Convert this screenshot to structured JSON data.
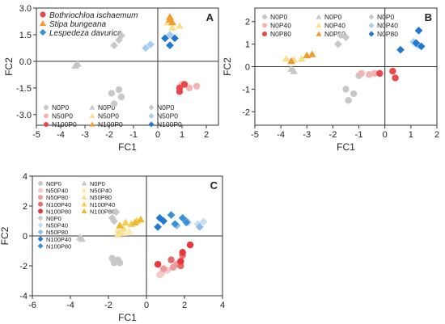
{
  "chart_data": [
    {
      "type": "scatter",
      "panel_label": "A",
      "xlabel": "FC1",
      "ylabel": "FC2",
      "xlim": [
        -5,
        2.5
      ],
      "ylim": [
        -3.6,
        3.0
      ],
      "xticks": [
        -5,
        -4,
        -3,
        -2,
        -1,
        0,
        1,
        2
      ],
      "yticks": [
        -3.0,
        -1.5,
        0.0,
        1.5,
        3.0
      ],
      "yticks_labels": [
        "-3.0",
        "-1.5",
        "0.0",
        "1.5",
        "3.0"
      ],
      "species_legend": [
        {
          "name": "Bothriochloa ischaemum",
          "shape": "circle",
          "color": "#e8474b"
        },
        {
          "name": "Stipa bungeana",
          "shape": "triangle",
          "color": "#f39a2c"
        },
        {
          "name": "Lespedeza davurica",
          "shape": "diamond",
          "color": "#3a8fd9"
        }
      ],
      "legend": [
        {
          "name": "N0P0",
          "shape": "circle",
          "color": "#c8c8c8"
        },
        {
          "name": "N50P0",
          "shape": "circle",
          "color": "#f4b4b4"
        },
        {
          "name": "N100P0",
          "shape": "circle",
          "color": "#e8474b"
        },
        {
          "name": "N0P0",
          "shape": "triangle",
          "color": "#c8c8c8"
        },
        {
          "name": "N50P0",
          "shape": "triangle",
          "color": "#f9de8c"
        },
        {
          "name": "N100P0",
          "shape": "triangle",
          "color": "#f39a2c"
        },
        {
          "name": "N0P0",
          "shape": "diamond",
          "color": "#c8c8c8"
        },
        {
          "name": "N50P0",
          "shape": "diamond",
          "color": "#a9cdf0"
        },
        {
          "name": "N100P0",
          "shape": "diamond",
          "color": "#1f78d1"
        }
      ],
      "series": [
        {
          "shape": "circle",
          "color": "#c8c8c8",
          "points": [
            [
              -1.6,
              -1.6
            ],
            [
              -1.9,
              -1.8
            ],
            [
              -1.5,
              -2.0
            ],
            [
              -1.8,
              -2.4
            ]
          ]
        },
        {
          "shape": "circle",
          "color": "#f4b4b4",
          "points": [
            [
              1.3,
              -1.5
            ],
            [
              1.6,
              -1.4
            ],
            [
              1.0,
              -1.3
            ]
          ]
        },
        {
          "shape": "circle",
          "color": "#e8474b",
          "points": [
            [
              0.9,
              -1.5
            ],
            [
              1.1,
              -1.3
            ],
            [
              0.9,
              -1.7
            ]
          ]
        },
        {
          "shape": "triangle",
          "color": "#c8c8c8",
          "points": [
            [
              -3.3,
              -0.15
            ],
            [
              -3.4,
              -0.25
            ]
          ]
        },
        {
          "shape": "triangle",
          "color": "#f9de8c",
          "points": [
            [
              0.9,
              2.0
            ],
            [
              0.4,
              2.2
            ],
            [
              0.6,
              1.9
            ]
          ]
        },
        {
          "shape": "triangle",
          "color": "#f39a2c",
          "points": [
            [
              0.5,
              2.5
            ],
            [
              0.6,
              2.2
            ],
            [
              0.5,
              2.35
            ]
          ]
        },
        {
          "shape": "diamond",
          "color": "#c8c8c8",
          "points": [
            [
              -1.8,
              0.9
            ],
            [
              -1.6,
              1.2
            ],
            [
              -1.5,
              1.45
            ]
          ]
        },
        {
          "shape": "diamond",
          "color": "#a9cdf0",
          "points": [
            [
              -0.5,
              0.75
            ],
            [
              -0.3,
              0.95
            ],
            [
              0.5,
              1.5
            ]
          ]
        },
        {
          "shape": "diamond",
          "color": "#1f78d1",
          "points": [
            [
              0.3,
              1.3
            ],
            [
              0.7,
              1.3
            ],
            [
              0.5,
              0.9
            ]
          ]
        }
      ]
    },
    {
      "type": "scatter",
      "panel_label": "B",
      "xlabel": "FC1",
      "ylabel": "FC2",
      "xlim": [
        -5,
        2
      ],
      "ylim": [
        -2.6,
        2.6
      ],
      "xticks": [
        -5,
        -4,
        -3,
        -2,
        -1,
        0,
        1,
        2
      ],
      "yticks": [
        -2,
        -1,
        0,
        1,
        2
      ],
      "legend": [
        {
          "name": "N0P0",
          "shape": "circle",
          "color": "#c8c8c8"
        },
        {
          "name": "N0P40",
          "shape": "circle",
          "color": "#f4b4b4"
        },
        {
          "name": "N0P80",
          "shape": "circle",
          "color": "#e8474b"
        },
        {
          "name": "N0P0",
          "shape": "triangle",
          "color": "#c8c8c8"
        },
        {
          "name": "N0P40",
          "shape": "triangle",
          "color": "#f9de8c"
        },
        {
          "name": "N0P80",
          "shape": "triangle",
          "color": "#f39a2c"
        },
        {
          "name": "N0P0",
          "shape": "diamond",
          "color": "#c8c8c8"
        },
        {
          "name": "N0P40",
          "shape": "diamond",
          "color": "#a9cdf0"
        },
        {
          "name": "N0P80",
          "shape": "diamond",
          "color": "#1f78d1"
        }
      ],
      "series": [
        {
          "shape": "circle",
          "color": "#c8c8c8",
          "points": [
            [
              -1.5,
              -1.0
            ],
            [
              -1.4,
              -1.5
            ],
            [
              -1.2,
              -1.2
            ],
            [
              -1.0,
              -0.4
            ]
          ]
        },
        {
          "shape": "circle",
          "color": "#f4b4b4",
          "points": [
            [
              -0.9,
              -0.3
            ],
            [
              -0.6,
              -0.35
            ],
            [
              -0.4,
              -0.3
            ]
          ]
        },
        {
          "shape": "circle",
          "color": "#e8474b",
          "points": [
            [
              0.3,
              -0.2
            ],
            [
              0.4,
              -0.5
            ],
            [
              -0.2,
              -0.3
            ]
          ]
        },
        {
          "shape": "triangle",
          "color": "#c8c8c8",
          "points": [
            [
              -3.5,
              -0.2
            ],
            [
              -3.6,
              -0.1
            ]
          ]
        },
        {
          "shape": "triangle",
          "color": "#f9de8c",
          "points": [
            [
              -3.8,
              0.35
            ],
            [
              -3.5,
              0.3
            ],
            [
              -3.2,
              0.35
            ]
          ]
        },
        {
          "shape": "triangle",
          "color": "#f39a2c",
          "points": [
            [
              -3.0,
              0.5
            ],
            [
              -2.8,
              0.55
            ],
            [
              -3.6,
              0.25
            ]
          ]
        },
        {
          "shape": "diamond",
          "color": "#c8c8c8",
          "points": [
            [
              -1.8,
              1.0
            ],
            [
              -1.7,
              1.4
            ],
            [
              -1.5,
              1.3
            ]
          ]
        },
        {
          "shape": "diamond",
          "color": "#a9cdf0",
          "points": [
            [
              1.2,
              1.0
            ],
            [
              1.3,
              0.95
            ],
            [
              1.1,
              1.1
            ]
          ]
        },
        {
          "shape": "diamond",
          "color": "#1f78d1",
          "points": [
            [
              0.6,
              0.75
            ],
            [
              1.3,
              1.6
            ],
            [
              1.2,
              1.05
            ],
            [
              1.4,
              0.9
            ]
          ]
        }
      ]
    },
    {
      "type": "scatter",
      "panel_label": "C",
      "xlabel": "FC1",
      "ylabel": "FC2",
      "xlim": [
        -6,
        4
      ],
      "ylim": [
        -4,
        4
      ],
      "xticks": [
        -6,
        -4,
        -2,
        0,
        2,
        4
      ],
      "yticks": [
        -4,
        -2,
        0,
        2,
        4
      ],
      "legend": [
        {
          "name": "N0P0",
          "shape": "circle",
          "color": "#c8c8c8"
        },
        {
          "name": "N50P40",
          "shape": "circle",
          "color": "#f4c8c8"
        },
        {
          "name": "N50P80",
          "shape": "circle",
          "color": "#ef9a9a"
        },
        {
          "name": "N100P40",
          "shape": "circle",
          "color": "#e86a6a"
        },
        {
          "name": "N100P80",
          "shape": "circle",
          "color": "#e8363b"
        },
        {
          "name": "N0P0",
          "shape": "diamond",
          "color": "#c8c8c8"
        },
        {
          "name": "N50P40",
          "shape": "diamond",
          "color": "#c6def4"
        },
        {
          "name": "N50P80",
          "shape": "diamond",
          "color": "#8dbbe8"
        },
        {
          "name": "N100P40",
          "shape": "diamond",
          "color": "#1f78d1"
        },
        {
          "name": "N100P80",
          "shape": "diamond",
          "color": "#3a8fd9"
        }
      ],
      "legend2": [
        {
          "name": "N0P0",
          "shape": "triangle",
          "color": "#c8c8c8"
        },
        {
          "name": "N50P40",
          "shape": "triangle",
          "color": "#fbeab0"
        },
        {
          "name": "N50P80",
          "shape": "triangle",
          "color": "#f9de8c"
        },
        {
          "name": "N100P40",
          "shape": "triangle",
          "color": "#f5cd50"
        },
        {
          "name": "N100P80",
          "shape": "triangle",
          "color": "#f0b72c"
        }
      ],
      "series": [
        {
          "shape": "circle",
          "color": "#c8c8c8",
          "points": [
            [
              -1.8,
              -1.5
            ],
            [
              -1.5,
              -1.6
            ],
            [
              -1.4,
              -1.8
            ],
            [
              -1.7,
              -1.8
            ]
          ]
        },
        {
          "shape": "circle",
          "color": "#f4c8c8",
          "points": [
            [
              0.8,
              -2.5
            ],
            [
              1.1,
              -2.3
            ],
            [
              0.7,
              -2.6
            ]
          ]
        },
        {
          "shape": "circle",
          "color": "#ef9a9a",
          "points": [
            [
              1.4,
              -2.1
            ],
            [
              1.6,
              -1.9
            ],
            [
              0.9,
              -2.2
            ]
          ]
        },
        {
          "shape": "circle",
          "color": "#e86a6a",
          "points": [
            [
              1.3,
              -1.6
            ],
            [
              1.9,
              -1.3
            ],
            [
              1.8,
              -2.0
            ]
          ]
        },
        {
          "shape": "circle",
          "color": "#e8363b",
          "points": [
            [
              1.9,
              -1.1
            ],
            [
              2.3,
              -0.6
            ],
            [
              1.8,
              -1.7
            ],
            [
              0.6,
              -1.9
            ]
          ]
        },
        {
          "shape": "triangle",
          "color": "#c8c8c8",
          "points": [
            [
              -3.4,
              -0.2
            ],
            [
              -3.5,
              -0.1
            ]
          ]
        },
        {
          "shape": "triangle",
          "color": "#fbeab0",
          "points": [
            [
              -1.2,
              0.2
            ],
            [
              -0.9,
              0.3
            ],
            [
              -1.5,
              0.4
            ]
          ]
        },
        {
          "shape": "triangle",
          "color": "#f9de8c",
          "points": [
            [
              -1.5,
              0.1
            ],
            [
              -1.2,
              0.5
            ],
            [
              -1.4,
              0.2
            ]
          ]
        },
        {
          "shape": "triangle",
          "color": "#f5cd50",
          "points": [
            [
              -1.1,
              0.9
            ],
            [
              -0.8,
              0.8
            ],
            [
              -0.5,
              1.0
            ]
          ]
        },
        {
          "shape": "triangle",
          "color": "#f0b72c",
          "points": [
            [
              -0.3,
              1.1
            ],
            [
              -1.4,
              0.7
            ],
            [
              -0.6,
              0.9
            ]
          ]
        },
        {
          "shape": "diamond",
          "color": "#c8c8c8",
          "points": [
            [
              -1.8,
              1.2
            ],
            [
              -1.7,
              1.0
            ],
            [
              -1.6,
              1.6
            ]
          ]
        },
        {
          "shape": "diamond",
          "color": "#c6def4",
          "points": [
            [
              2.2,
              0.9
            ],
            [
              3.0,
              0.95
            ],
            [
              2.7,
              0.8
            ]
          ]
        },
        {
          "shape": "diamond",
          "color": "#8dbbe8",
          "points": [
            [
              2.8,
              0.6
            ],
            [
              2.1,
              1.0
            ],
            [
              1.6,
              0.7
            ]
          ]
        },
        {
          "shape": "diamond",
          "color": "#1f78d1",
          "points": [
            [
              0.6,
              0.6
            ],
            [
              0.9,
              1.0
            ],
            [
              0.7,
              1.2
            ]
          ]
        },
        {
          "shape": "diamond",
          "color": "#3a8fd9",
          "points": [
            [
              1.3,
              1.4
            ],
            [
              2.1,
              0.9
            ],
            [
              1.5,
              0.8
            ],
            [
              1.9,
              1.2
            ]
          ]
        }
      ]
    }
  ]
}
